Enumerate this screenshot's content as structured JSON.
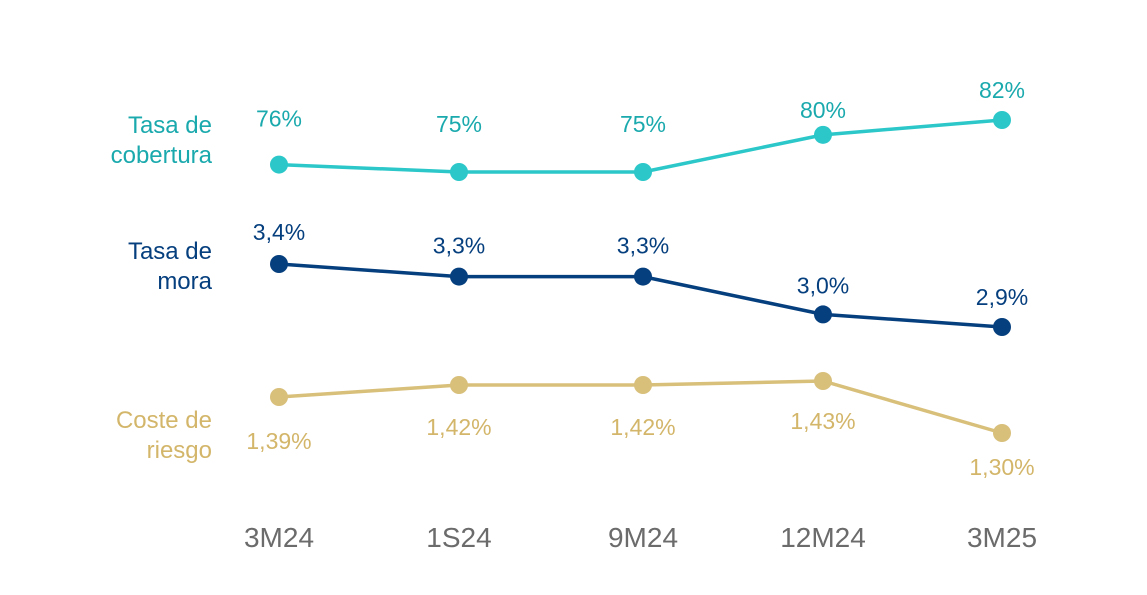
{
  "chart_data": {
    "type": "line",
    "categories": [
      "3M24",
      "1S24",
      "9M24",
      "12M24",
      "3M25"
    ],
    "series": [
      {
        "name": "Tasa de cobertura",
        "name_lines": [
          "Tasa de",
          "cobertura"
        ],
        "color": "#2bc7c9",
        "label_color": "#1aa9ad",
        "values": [
          76,
          75,
          75,
          80,
          82
        ],
        "labels": [
          "76%",
          "75%",
          "75%",
          "80%",
          "82%"
        ]
      },
      {
        "name": "Tasa de mora",
        "name_lines": [
          "Tasa de",
          "mora"
        ],
        "color": "#063f7e",
        "label_color": "#063f7e",
        "values": [
          3.4,
          3.3,
          3.3,
          3.0,
          2.9
        ],
        "labels": [
          "3,4%",
          "3,3%",
          "3,3%",
          "3,0%",
          "2,9%"
        ]
      },
      {
        "name": "Coste de riesgo",
        "name_lines": [
          "Coste de",
          "riesgo"
        ],
        "color": "#d8bf7a",
        "label_color": "#d3b66a",
        "values": [
          1.39,
          1.42,
          1.42,
          1.43,
          1.3
        ],
        "labels": [
          "1,39%",
          "1,42%",
          "1,42%",
          "1,43%",
          "1,30%"
        ]
      }
    ],
    "grid": false,
    "legend": "left"
  }
}
